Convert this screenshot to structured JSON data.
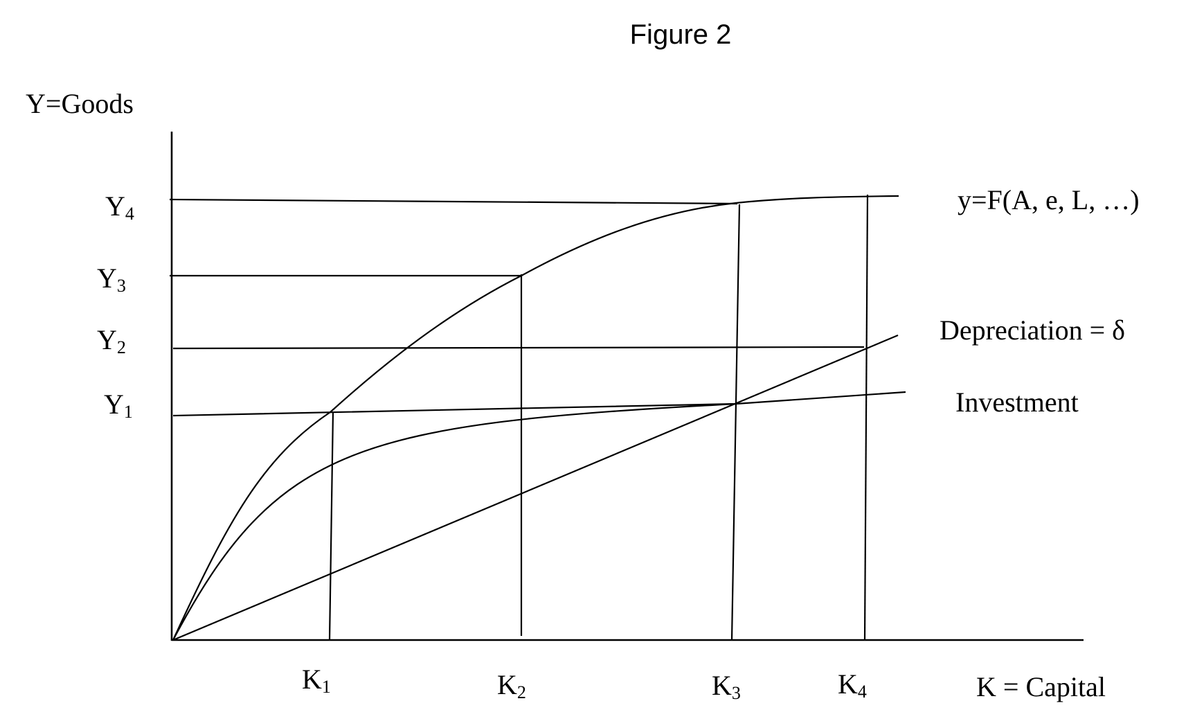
{
  "title": "Figure 2",
  "y_axis_label": "Y=Goods",
  "x_axis_label": "K = Capital",
  "y_levels": [
    {
      "main": "Y",
      "sub": "4"
    },
    {
      "main": "Y",
      "sub": "3"
    },
    {
      "main": "Y",
      "sub": "2"
    },
    {
      "main": "Y",
      "sub": "1"
    }
  ],
  "k_levels": [
    {
      "main": "K",
      "sub": "1"
    },
    {
      "main": "K",
      "sub": "2"
    },
    {
      "main": "K",
      "sub": "3"
    },
    {
      "main": "K",
      "sub": "4"
    }
  ],
  "curves": {
    "production": "y=F(A, e, L, …)",
    "depreciation": "Depreciation = δ",
    "investment": "Investment"
  }
}
